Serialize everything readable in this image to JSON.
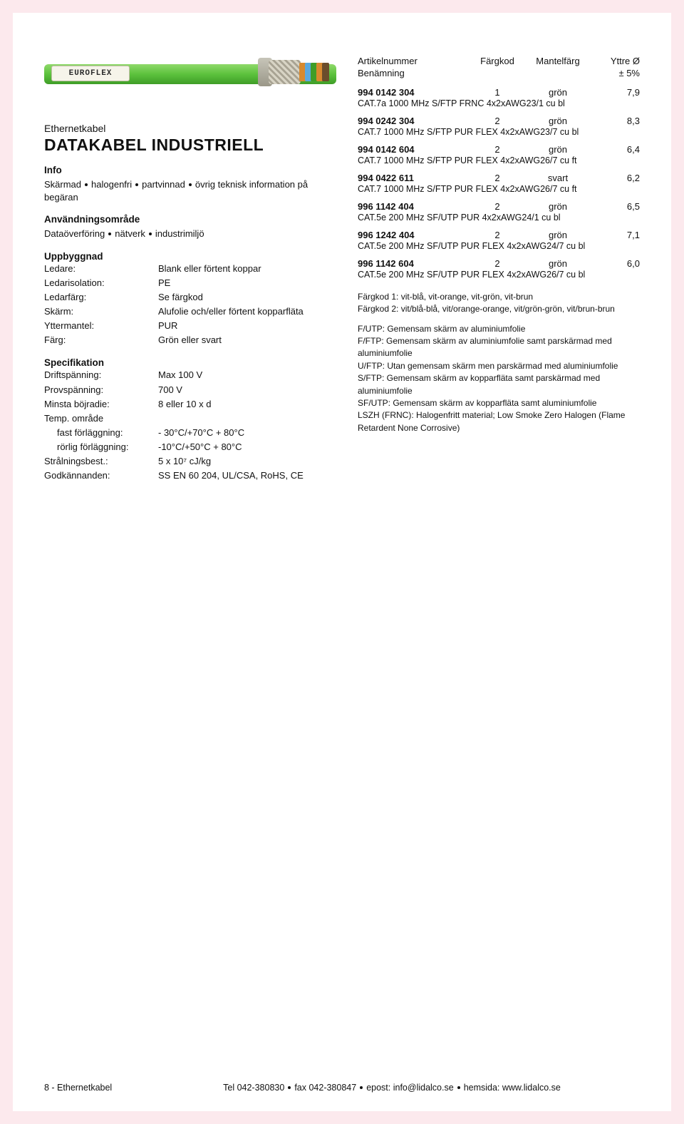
{
  "colors": {
    "page_bg": "#fce9ed",
    "cable": "#5cc23d",
    "text": "#111111"
  },
  "image": {
    "brand": "EUROFLEX"
  },
  "left": {
    "product_class": "Ethernetkabel",
    "product_title": "DATAKABEL INDUSTRIELL",
    "info_heading": "Info",
    "info_parts": [
      "Skärmad",
      "halogenfri",
      "partvinnad",
      "övrig teknisk information på begäran"
    ],
    "use_heading": "Användningsområde",
    "use_parts": [
      "Dataöverföring",
      "nätverk",
      "industrimiljö"
    ],
    "build_heading": "Uppbyggnad",
    "build": {
      "ledare_k": "Ledare:",
      "ledare_v": "Blank eller förtent koppar",
      "ledariso_k": "Ledarisolation:",
      "ledariso_v": "PE",
      "ledarfarg_k": "Ledarfärg:",
      "ledarfarg_v": "Se färgkod",
      "skarm_k": "Skärm:",
      "skarm_v": "Alufolie och/eller förtent koppar­fläta",
      "ytter_k": "Yttermantel:",
      "ytter_v": "PUR",
      "farg_k": "Färg:",
      "farg_v": "Grön eller svart"
    },
    "spec_heading": "Specifikation",
    "spec": {
      "drift_k": "Driftspänning:",
      "drift_v": "Max 100 V",
      "prov_k": "Provspänning:",
      "prov_v": "700 V",
      "boj_k": "Minsta böjradie:",
      "boj_v": "8 eller 10 x d",
      "temp_k": "Temp. område",
      "fast_k": "fast förläggning:",
      "fast_v": "- 30°C/+70°C   + 80°C",
      "rorlig_k": "rörlig förläggning:",
      "rorlig_v": "-10°C/+50°C   + 80°C",
      "stral_k": "Strålningsbest.:",
      "stral_v": "5 x 10⁷ cJ/kg",
      "godk_k": "Godkännanden:",
      "godk_v": "SS EN 60 204, UL/CSA, RoHS, CE"
    }
  },
  "right": {
    "header": {
      "art": "Artikelnummer",
      "ben": "Benämning",
      "kod": "Färgkod",
      "mantel": "Mantelfärg",
      "dia": "Yttre Ø",
      "tol": "± 5%"
    },
    "items": [
      {
        "art": "994 0142 304",
        "kod": "1",
        "col": "grön",
        "dia": "7,9",
        "desc": "CAT.7a 1000 MHz S/FTP FRNC 4x2xAWG23/1 cu bl"
      },
      {
        "art": "994 0242 304",
        "kod": "2",
        "col": "grön",
        "dia": "8,3",
        "desc": "CAT.7 1000 MHz S/FTP PUR FLEX 4x2xAWG23/7 cu bl"
      },
      {
        "art": "994 0142 604",
        "kod": "2",
        "col": "grön",
        "dia": "6,4",
        "desc": "CAT.7 1000 MHz S/FTP PUR FLEX 4x2xAWG26/7 cu ft"
      },
      {
        "art": "994 0422 611",
        "kod": "2",
        "col": "svart",
        "dia": "6,2",
        "desc": "CAT.7 1000 MHz S/FTP PUR FLEX 4x2xAWG26/7 cu ft"
      },
      {
        "art": "996 1142 404",
        "kod": "2",
        "col": "grön",
        "dia": "6,5",
        "desc": "CAT.5e 200 MHz SF/UTP PUR 4x2xAWG24/1 cu bl"
      },
      {
        "art": "996 1242 404",
        "kod": "2",
        "col": "grön",
        "dia": "7,1",
        "desc": "CAT.5e 200 MHz SF/UTP PUR FLEX 4x2xAWG24/7 cu bl"
      },
      {
        "art": "996 1142 604",
        "kod": "2",
        "col": "grön",
        "dia": "6,0",
        "desc": "CAT.5e 200 MHz SF/UTP PUR FLEX 4x2xAWG26/7 cu bl"
      }
    ],
    "notes": {
      "k1": "Färgkod 1: vit-blå, vit-orange, vit-grön, vit-brun",
      "k2": "Färgkod 2: vit/blå-blå, vit/orange-orange, vit/grön-grön, vit/brun-brun",
      "futp": "F/UTP: Gemensam skärm av aluminiumfolie",
      "fftp": "F/FTP: Gemensam skärm av aluminiumfolie samt parskärmad med aluminiumfolie",
      "uftp": "U/FTP: Utan gemensam skärm men parskärmad med aluminiumfolie",
      "sftp": "S/FTP: Gemensam skärm av kopparfläta samt parskärmad med aluminiumfolie",
      "sfutp": "SF/UTP: Gemensam skärm av kopparfläta samt aluminiumfolie",
      "lszh": "LSZH (FRNC): Halogenfritt material; Low Smoke Zero Halogen (Flame Retardent None Corrosive)"
    }
  },
  "footer": {
    "pageinfo": "8 - Ethernetkabel",
    "tel": "Tel 042-380830",
    "fax": "fax 042-380847",
    "epost": "epost: info@lidalco.se",
    "web": "hemsida: www.lidalco.se"
  }
}
